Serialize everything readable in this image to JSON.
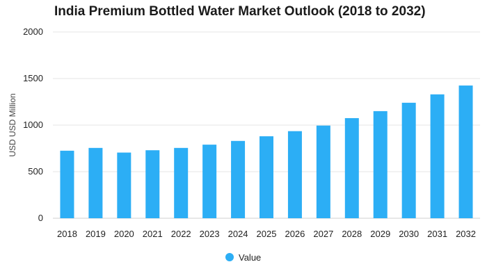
{
  "chart_data": {
    "type": "bar",
    "title": "India Premium Bottled Water Market Outlook (2018 to 2032)",
    "ylabel": "USD USD Million",
    "xlabel": "",
    "categories": [
      "2018",
      "2019",
      "2020",
      "2021",
      "2022",
      "2023",
      "2024",
      "2025",
      "2026",
      "2027",
      "2028",
      "2029",
      "2030",
      "2031",
      "2032"
    ],
    "series": [
      {
        "name": "Value",
        "color": "#2caef5",
        "values": [
          725,
          755,
          705,
          730,
          755,
          790,
          830,
          880,
          935,
          995,
          1075,
          1150,
          1240,
          1330,
          1425
        ]
      }
    ],
    "ylim": [
      0,
      2000
    ],
    "yticks": [
      0,
      500,
      1000,
      1500,
      2000
    ],
    "grid": true,
    "legend_position": "bottom"
  }
}
